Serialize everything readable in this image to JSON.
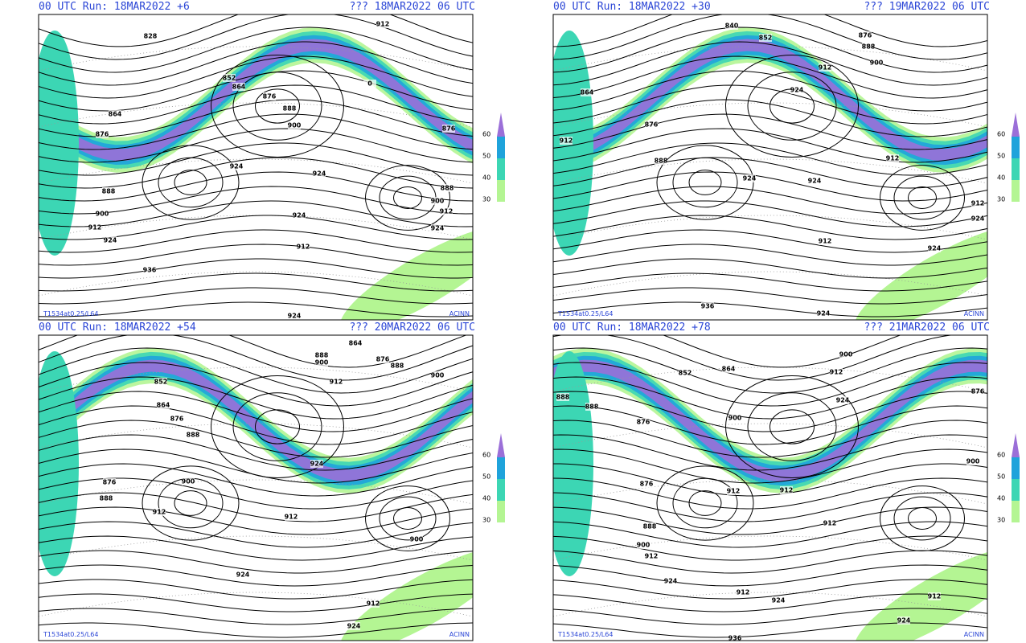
{
  "panels": [
    {
      "run": "00 UTC Run: 18MAR2022 +6",
      "valid": "??? 18MAR2022 06 UTC",
      "contour_labels": [
        "828",
        "852",
        "864",
        "876",
        "888",
        "900",
        "912",
        "0",
        "864",
        "876",
        "924",
        "888",
        "900",
        "912",
        "924",
        "924",
        "924",
        "912",
        "936",
        "924",
        "876",
        "888",
        "900",
        "912",
        "924"
      ],
      "model": "T1534at0.25/L64",
      "credit": "ACINN"
    },
    {
      "run": "00 UTC Run: 18MAR2022 +30",
      "valid": "??? 19MAR2022 06 UTC",
      "contour_labels": [
        "840",
        "852",
        "876",
        "888",
        "900",
        "912",
        "864",
        "876",
        "912",
        "888",
        "924",
        "924",
        "912",
        "924",
        "912",
        "936",
        "924",
        "924",
        "912",
        "924"
      ],
      "model": "T1534at0.25/L64",
      "credit": "ACINN"
    },
    {
      "run": "00 UTC Run: 18MAR2022 +54",
      "valid": "??? 20MAR2022 06 UTC",
      "contour_labels": [
        "864",
        "888",
        "876",
        "888",
        "900",
        "900",
        "912",
        "852",
        "864",
        "876",
        "888",
        "876",
        "888",
        "900",
        "924",
        "912",
        "912",
        "924",
        "900",
        "912",
        "924"
      ],
      "model": "T1534at0.25/L64",
      "credit": "ACINN"
    },
    {
      "run": "00 UTC Run: 18MAR2022 +78",
      "valid": "??? 21MAR2022 06 UTC",
      "contour_labels": [
        "900",
        "912",
        "924",
        "852",
        "864",
        "876",
        "888",
        "888",
        "876",
        "900",
        "876",
        "912",
        "912",
        "888",
        "900",
        "912",
        "912",
        "924",
        "912",
        "924",
        "936",
        "924",
        "912",
        "900"
      ],
      "model": "T1534at0.25/L64",
      "credit": "ACINN"
    }
  ],
  "legend": {
    "labels": [
      "60",
      "50",
      "40",
      "30"
    ]
  }
}
